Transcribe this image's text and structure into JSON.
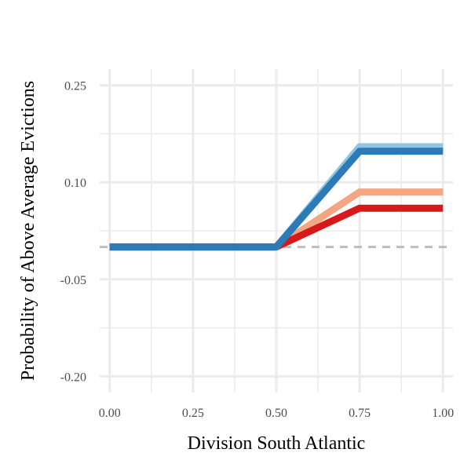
{
  "chart_data": {
    "type": "line",
    "title": "",
    "xlabel": "Division South Atlantic",
    "ylabel": "Probability of Above Average Evictions",
    "xlim": [
      -0.03,
      1.03
    ],
    "ylim": [
      -0.225,
      0.275
    ],
    "x_ticks": [
      0.0,
      0.25,
      0.5,
      0.75,
      1.0
    ],
    "x_tick_labels": [
      "0.00",
      "0.25",
      "0.50",
      "0.75",
      "1.00"
    ],
    "y_ticks": [
      -0.2,
      -0.05,
      0.1,
      0.25
    ],
    "y_tick_labels": [
      "-0.20",
      "-0.05",
      "0.10",
      "0.25"
    ],
    "grid": true,
    "legend": "none",
    "reference_line": {
      "y": 0.0,
      "style": "dashed",
      "color": "#bdbdbd"
    },
    "series": [
      {
        "x": [
          0.0,
          0.5,
          0.75,
          1.0
        ],
        "y": [
          0.0,
          0.0,
          0.155,
          0.155
        ],
        "color": "#92c5de"
      },
      {
        "x": [
          0.0,
          0.5,
          0.75,
          1.0
        ],
        "y": [
          0.0,
          0.0,
          0.085,
          0.085
        ],
        "color": "#f4a582"
      },
      {
        "x": [
          0.0,
          0.5,
          0.75,
          1.0
        ],
        "y": [
          0.0,
          0.0,
          0.06,
          0.06
        ],
        "color": "#d7191c"
      },
      {
        "x": [
          0.0,
          0.5,
          0.75,
          1.0
        ],
        "y": [
          0.0,
          0.0,
          0.148,
          0.148
        ],
        "color": "#2c7bb6"
      }
    ]
  }
}
